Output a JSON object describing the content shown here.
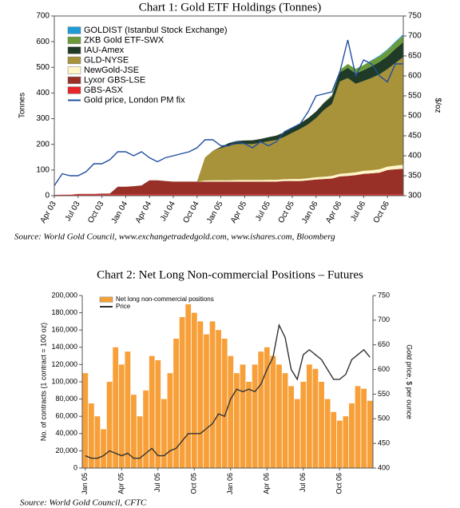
{
  "chart_data": [
    {
      "type": "area",
      "title": "Chart 1: Gold ETF Holdings (Tonnes)",
      "y_label": "Tonnes",
      "y2_label": "$/oz",
      "source": "Source: World Gold Council, www.exchangetradedgold.com, www.ishares.com, Bloomberg",
      "categories": [
        "Apr 03",
        null,
        null,
        "Jul 03",
        null,
        null,
        "Oct 03",
        null,
        null,
        "Jan 04",
        null,
        null,
        "Apr 04",
        null,
        null,
        "Jul 04",
        null,
        null,
        "Oct 04",
        null,
        null,
        "Jan 05",
        null,
        null,
        "Apr 05",
        null,
        null,
        "Jul 05",
        null,
        null,
        "Oct 05",
        null,
        null,
        "Jan 06",
        null,
        null,
        "Apr 06",
        null,
        null,
        "Jul 06",
        null,
        null,
        "Oct 06",
        null,
        null
      ],
      "ylim": [
        0,
        700
      ],
      "yticks": [
        0,
        100,
        200,
        300,
        400,
        500,
        600,
        700
      ],
      "y2lim": [
        300,
        750
      ],
      "y2ticks": [
        300,
        350,
        400,
        450,
        500,
        550,
        600,
        650,
        700,
        750
      ],
      "series": [
        {
          "name": "GOLDIST (Istanbul Stock Exchange)",
          "color": "#1e9bd7",
          "values": [
            0,
            0,
            0,
            0,
            0,
            0,
            0,
            0,
            0,
            0,
            0,
            0,
            0,
            0,
            0,
            0,
            0,
            0,
            0,
            0,
            0,
            0,
            0,
            0,
            0,
            0,
            0,
            0,
            0,
            0,
            0,
            0,
            0,
            0,
            0,
            0,
            0,
            0,
            0,
            0,
            2,
            3,
            3,
            4,
            5
          ]
        },
        {
          "name": "ZKB Gold ETF-SWX",
          "color": "#6a9a3a",
          "values": [
            0,
            0,
            0,
            0,
            0,
            0,
            0,
            0,
            0,
            0,
            0,
            0,
            0,
            0,
            0,
            0,
            0,
            0,
            0,
            0,
            0,
            0,
            0,
            0,
            0,
            0,
            0,
            0,
            0,
            0,
            0,
            0,
            0,
            0,
            0,
            5,
            10,
            15,
            18,
            20,
            22,
            22,
            24,
            25,
            26
          ]
        },
        {
          "name": "IAU-Amex",
          "color": "#1f3a26",
          "values": [
            0,
            0,
            0,
            0,
            0,
            0,
            0,
            0,
            0,
            0,
            0,
            0,
            0,
            0,
            0,
            0,
            0,
            0,
            0,
            0,
            0,
            5,
            10,
            12,
            14,
            15,
            15,
            16,
            17,
            18,
            20,
            22,
            24,
            26,
            28,
            30,
            35,
            40,
            40,
            42,
            45,
            48,
            50,
            55,
            58
          ]
        },
        {
          "name": "GLD-NYSE",
          "color": "#a8923a",
          "values": [
            0,
            0,
            0,
            0,
            0,
            0,
            0,
            0,
            0,
            0,
            0,
            0,
            0,
            0,
            0,
            0,
            0,
            0,
            0,
            90,
            115,
            125,
            135,
            140,
            140,
            140,
            145,
            150,
            155,
            165,
            180,
            195,
            210,
            230,
            260,
            280,
            360,
            370,
            345,
            350,
            360,
            370,
            380,
            400,
            420
          ]
        },
        {
          "name": "NewGold-JSE",
          "color": "#fff6c8",
          "values": [
            0,
            0,
            0,
            0,
            0,
            0,
            0,
            0,
            0,
            0,
            0,
            0,
            0,
            0,
            0,
            0,
            0,
            0,
            0,
            4,
            5,
            5,
            5,
            6,
            6,
            6,
            6,
            7,
            7,
            7,
            8,
            8,
            8,
            9,
            9,
            10,
            10,
            11,
            11,
            12,
            12,
            13,
            13,
            14,
            15
          ]
        },
        {
          "name": "Lyxor GBS-LSE",
          "color": "#983028",
          "values": [
            0,
            0,
            0,
            2,
            2,
            2,
            3,
            3,
            30,
            30,
            32,
            35,
            55,
            55,
            52,
            50,
            50,
            50,
            50,
            50,
            50,
            50,
            50,
            50,
            50,
            50,
            50,
            50,
            50,
            52,
            52,
            52,
            55,
            58,
            60,
            62,
            70,
            72,
            75,
            80,
            82,
            85,
            95,
            98,
            100
          ]
        },
        {
          "name": "GBS-ASX",
          "color": "#e8262a",
          "values": [
            3,
            4,
            4,
            5,
            5,
            5,
            5,
            5,
            5,
            5,
            5,
            5,
            5,
            5,
            5,
            5,
            5,
            5,
            5,
            5,
            5,
            5,
            5,
            5,
            5,
            5,
            5,
            5,
            5,
            5,
            5,
            5,
            5,
            5,
            5,
            5,
            5,
            5,
            5,
            5,
            5,
            5,
            5,
            5,
            5
          ]
        },
        {
          "name": "Gold price, London PM fix",
          "color": "#1f4fa0",
          "type": "line",
          "axis": "y2",
          "values": [
            325,
            355,
            350,
            350,
            360,
            380,
            380,
            390,
            410,
            410,
            400,
            410,
            395,
            385,
            395,
            400,
            405,
            410,
            420,
            440,
            440,
            425,
            425,
            435,
            430,
            420,
            435,
            425,
            435,
            460,
            470,
            480,
            510,
            550,
            555,
            560,
            610,
            690,
            600,
            640,
            630,
            600,
            585,
            630,
            630
          ]
        }
      ]
    },
    {
      "type": "bar",
      "title": "Chart 2: Net Long Non-commercial Positions – Futures",
      "y_label": "No. of contracts (1 contract = 100 oz)",
      "y2_label": "Gold price, $ per ounce",
      "source": "Source: World Gold Council, CFTC",
      "categories": [
        "Jan 05",
        null,
        null,
        null,
        null,
        null,
        "Apr 05",
        null,
        null,
        null,
        null,
        null,
        "Jul 05",
        null,
        null,
        null,
        null,
        null,
        "Oct 05",
        null,
        null,
        null,
        null,
        null,
        "Jan 06",
        null,
        null,
        null,
        null,
        null,
        "Apr 06",
        null,
        null,
        null,
        null,
        null,
        "Jul 06",
        null,
        null,
        null,
        null,
        null,
        "Oct 06",
        null,
        null,
        null,
        null,
        null
      ],
      "ylim": [
        0,
        200000
      ],
      "yticks": [
        0,
        {
          "value": 20000,
          "label": "20,000"
        },
        {
          "value": 40000,
          "label": "40,000"
        },
        {
          "value": 60000,
          "label": "60,000"
        },
        {
          "value": 80000,
          "label": "80,000"
        },
        {
          "value": 100000,
          "label": "100,000"
        },
        {
          "value": 120000,
          "label": "120,000"
        },
        {
          "value": 140000,
          "label": "140,000"
        },
        {
          "value": 160000,
          "label": "160,000"
        },
        {
          "value": 180000,
          "label": "180,000"
        },
        {
          "value": 200000,
          "label": "200,000"
        }
      ],
      "y2lim": [
        400,
        750
      ],
      "y2ticks": [
        400,
        450,
        500,
        550,
        600,
        650,
        700,
        750
      ],
      "series": [
        {
          "name": "Net long non-commercial positions",
          "color": "#f7a03a",
          "values": [
            110000,
            75000,
            60000,
            45000,
            100000,
            140000,
            120000,
            135000,
            85000,
            60000,
            90000,
            130000,
            125000,
            80000,
            110000,
            150000,
            175000,
            190000,
            180000,
            170000,
            155000,
            170000,
            160000,
            150000,
            130000,
            110000,
            120000,
            100000,
            120000,
            135000,
            140000,
            130000,
            120000,
            110000,
            95000,
            80000,
            100000,
            120000,
            115000,
            100000,
            80000,
            65000,
            55000,
            60000,
            75000,
            95000,
            92000,
            78000
          ]
        },
        {
          "name": "Price",
          "color": "#333333",
          "type": "line",
          "axis": "y2",
          "values": [
            425,
            420,
            420,
            425,
            435,
            430,
            425,
            430,
            420,
            420,
            430,
            440,
            425,
            425,
            435,
            440,
            455,
            470,
            470,
            470,
            480,
            490,
            510,
            505,
            540,
            560,
            555,
            560,
            555,
            570,
            600,
            625,
            690,
            665,
            600,
            580,
            630,
            640,
            630,
            620,
            600,
            580,
            580,
            590,
            620,
            630,
            640,
            625
          ]
        }
      ]
    }
  ]
}
